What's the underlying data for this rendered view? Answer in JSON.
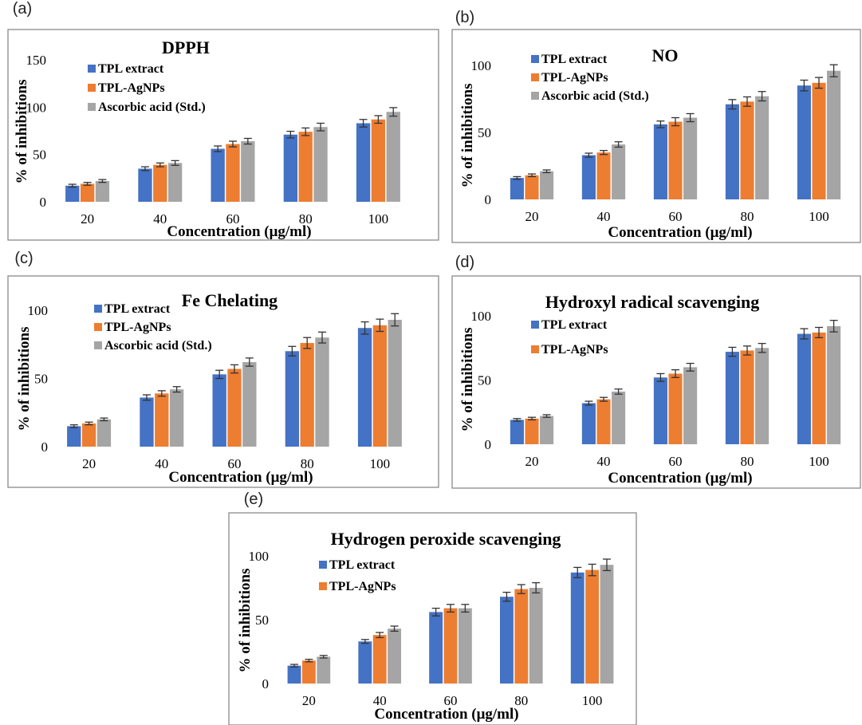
{
  "chart_data": [
    {
      "panel_label": "(a)",
      "type": "bar",
      "title": "DPPH",
      "xlabel": "Concentration (μg/ml)",
      "ylabel": "% of inhibitions",
      "categories": [
        "20",
        "40",
        "60",
        "80",
        "100"
      ],
      "ylim": [
        0,
        150
      ],
      "yticks": [
        0,
        50,
        100,
        150
      ],
      "legend": "top-left",
      "series": [
        {
          "name": "TPL extract",
          "color": "#4472C4",
          "values": [
            17,
            35,
            56,
            71,
            83
          ],
          "errors": [
            1.5,
            2,
            3,
            3.5,
            4
          ]
        },
        {
          "name": "TPL-AgNPs",
          "color": "#ED7D31",
          "values": [
            19,
            39,
            61,
            74,
            87
          ],
          "errors": [
            1.5,
            2,
            3,
            4,
            4
          ]
        },
        {
          "name": "Ascorbic acid (Std.)",
          "color": "#A5A5A5",
          "values": [
            22,
            41,
            64,
            79,
            95
          ],
          "errors": [
            1.5,
            2.5,
            3,
            4,
            4.5
          ]
        }
      ]
    },
    {
      "panel_label": "(b)",
      "type": "bar",
      "title": "NO",
      "xlabel": "Concentration (μg/ml)",
      "ylabel": "% of inhibitions",
      "categories": [
        "20",
        "40",
        "60",
        "80",
        "100"
      ],
      "ylim": [
        0,
        100
      ],
      "yticks": [
        0,
        50,
        100
      ],
      "legend": "top-left",
      "series": [
        {
          "name": "TPL extract",
          "color": "#4472C4",
          "values": [
            16,
            33,
            56,
            71,
            85
          ],
          "errors": [
            1,
            1.5,
            2.5,
            3.5,
            4
          ]
        },
        {
          "name": "TPL-AgNPs",
          "color": "#ED7D31",
          "values": [
            18,
            35,
            58,
            73,
            87
          ],
          "errors": [
            1,
            1.5,
            3,
            3.5,
            4
          ]
        },
        {
          "name": "Ascorbic acid (Std.)",
          "color": "#A5A5A5",
          "values": [
            21,
            41,
            61,
            77,
            96
          ],
          "errors": [
            1,
            2,
            3,
            3.5,
            4.5
          ]
        }
      ]
    },
    {
      "panel_label": "(c)",
      "type": "bar",
      "title": "Fe Chelating",
      "xlabel": "Concentration (μg/ml)",
      "ylabel": "% of inhibitions",
      "categories": [
        "20",
        "40",
        "60",
        "80",
        "100"
      ],
      "ylim": [
        0,
        100
      ],
      "yticks": [
        0,
        50,
        100
      ],
      "legend": "top-left",
      "series": [
        {
          "name": "TPL extract",
          "color": "#4472C4",
          "values": [
            15,
            36,
            53,
            70,
            87
          ],
          "errors": [
            1,
            2,
            3,
            3.5,
            4.5
          ]
        },
        {
          "name": "TPL-AgNPs",
          "color": "#ED7D31",
          "values": [
            17,
            39,
            57,
            76,
            89
          ],
          "errors": [
            1,
            2,
            3,
            4,
            4.5
          ]
        },
        {
          "name": "Ascorbic acid (Std.)",
          "color": "#A5A5A5",
          "values": [
            20,
            42,
            62,
            80,
            93
          ],
          "errors": [
            1,
            2,
            3,
            4,
            4.5
          ]
        }
      ]
    },
    {
      "panel_label": "(d)",
      "type": "bar",
      "title": "Hydroxyl radical scavenging",
      "xlabel": "Concentration (μg/ml)",
      "ylabel": "% of inhibitions",
      "categories": [
        "20",
        "40",
        "60",
        "80",
        "100"
      ],
      "ylim": [
        0,
        100
      ],
      "yticks": [
        0,
        50,
        100
      ],
      "legend": "top-left",
      "series": [
        {
          "name": "TPL extract",
          "color": "#4472C4",
          "values": [
            19,
            32,
            52,
            72,
            86
          ],
          "errors": [
            1,
            1.5,
            3,
            3.5,
            4
          ]
        },
        {
          "name": "TPL-AgNPs",
          "color": "#ED7D31",
          "values": [
            20,
            35,
            55,
            73,
            87
          ],
          "errors": [
            1,
            1.5,
            3,
            3.5,
            4
          ]
        },
        {
          "color": "#A5A5A5",
          "values": [
            22,
            41,
            60,
            75,
            92
          ],
          "errors": [
            1,
            2,
            3,
            3.5,
            4.5
          ]
        }
      ]
    },
    {
      "panel_label": "(e)",
      "type": "bar",
      "title": "Hydrogen peroxide scavenging",
      "xlabel": "Concentration (μg/ml)",
      "ylabel": "% of inhibitions",
      "categories": [
        "20",
        "40",
        "60",
        "80",
        "100"
      ],
      "ylim": [
        0,
        100
      ],
      "yticks": [
        0,
        50,
        100
      ],
      "legend": "top-left",
      "series": [
        {
          "name": "TPL extract",
          "color": "#4472C4",
          "values": [
            14,
            33,
            56,
            68,
            87
          ],
          "errors": [
            1,
            1.5,
            3,
            3.5,
            4
          ]
        },
        {
          "name": "TPL-AgNPs",
          "color": "#ED7D31",
          "values": [
            18,
            38,
            59,
            74,
            89
          ],
          "errors": [
            1,
            2,
            3,
            3.5,
            4.5
          ]
        },
        {
          "color": "#A5A5A5",
          "values": [
            21,
            43,
            59,
            75,
            93
          ],
          "errors": [
            1,
            2,
            3,
            4,
            4.5
          ]
        }
      ]
    }
  ]
}
